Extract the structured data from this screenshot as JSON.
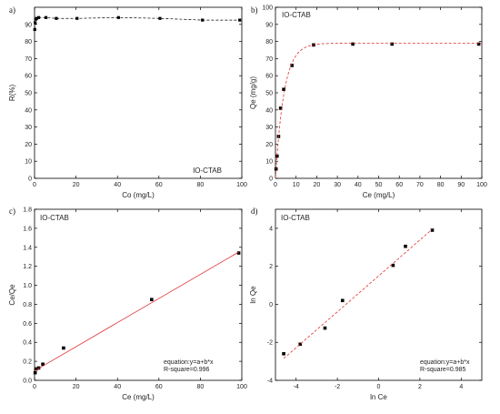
{
  "chart_data": [
    {
      "panel": "a)",
      "type": "line",
      "inset_label": "IO-CTAB",
      "xlabel": "Co (mg/L)",
      "ylabel": "R(%)",
      "xlim": [
        0,
        100
      ],
      "ylim": [
        0,
        100
      ],
      "xticks": [
        0,
        20,
        40,
        60,
        80,
        100
      ],
      "yticks": [
        0,
        10,
        20,
        30,
        40,
        50,
        60,
        70,
        80,
        90
      ],
      "series": [
        {
          "style": "dashed-line-square-markers",
          "color": "#000000",
          "x": [
            0.1,
            0.3,
            0.6,
            1.0,
            2.0,
            5.5,
            10.5,
            20.5,
            40.5,
            60.5,
            81,
            99
          ],
          "y": [
            87,
            91,
            93,
            93.5,
            94,
            94,
            93.5,
            93.5,
            94,
            93.5,
            92.5,
            92.5
          ]
        }
      ]
    },
    {
      "panel": "b)",
      "type": "scatter",
      "inset_label": "IO-CTAB",
      "xlabel": "Ce (mg/L)",
      "ylabel": "Qe (mg/g)",
      "xlim": [
        0,
        100
      ],
      "ylim": [
        0,
        100
      ],
      "xticks": [
        0,
        10,
        20,
        30,
        40,
        50,
        60,
        70,
        80,
        90,
        100
      ],
      "yticks": [
        0,
        10,
        20,
        30,
        40,
        50,
        60,
        70,
        80,
        90,
        100
      ],
      "series": [
        {
          "style": "square-markers",
          "color": "#000000",
          "x": [
            0.3,
            0.8,
            1.5,
            2.5,
            4.0,
            8.0,
            18.5,
            37.5,
            56.5,
            98.5
          ],
          "y": [
            5.5,
            13,
            24.5,
            41,
            52,
            66,
            78,
            78.5,
            78.5,
            78.5
          ]
        },
        {
          "style": "dashed-fit",
          "color": "#e03030",
          "fit": "langmuir-like",
          "qmax": 79,
          "k": 0.24
        }
      ]
    },
    {
      "panel": "c)",
      "type": "scatter",
      "inset_label": "IO-CTAB",
      "xlabel": "Ce (mg/L)",
      "ylabel": "Ce/Qe",
      "xlim": [
        0,
        100
      ],
      "ylim": [
        0,
        1.8
      ],
      "xticks": [
        0,
        20,
        40,
        60,
        80,
        100
      ],
      "yticks": [
        0,
        0.2,
        0.4,
        0.6,
        0.8,
        1.0,
        1.2,
        1.4,
        1.6,
        1.8
      ],
      "ytick_labels": [
        "0.0",
        "0.2",
        "0.4",
        "0.6",
        "0.8",
        "1.0",
        "1.2",
        "1.4",
        "1.6",
        "1.8"
      ],
      "equation": "equation:y=a+b*x",
      "r_square": "R-square=0.996",
      "series": [
        {
          "style": "square-markers",
          "color": "#000000",
          "x": [
            0.3,
            0.8,
            2.0,
            4.0,
            14.0,
            56.5,
            98.5
          ],
          "y": [
            0.08,
            0.12,
            0.13,
            0.17,
            0.34,
            0.85,
            1.34
          ]
        },
        {
          "style": "solid-fit",
          "color": "#e03030",
          "x": [
            0,
            98.5
          ],
          "y": [
            0.1,
            1.35
          ]
        }
      ]
    },
    {
      "panel": "d)",
      "type": "scatter",
      "inset_label": "IO-CTAB",
      "xlabel": "ln Ce",
      "ylabel": "ln Qe",
      "xlim": [
        -5,
        5
      ],
      "ylim": [
        -4,
        5
      ],
      "xticks": [
        -4,
        -2,
        0,
        2,
        4
      ],
      "yticks": [
        -4,
        -2,
        0,
        2,
        4
      ],
      "equation": "equation:y=a+b*x",
      "r_square": "R-square=0.985",
      "series": [
        {
          "style": "square-markers",
          "color": "#000000",
          "x": [
            -4.6,
            -3.8,
            -2.6,
            -1.75,
            0.7,
            1.3,
            2.6
          ],
          "y": [
            -2.6,
            -2.1,
            -1.25,
            0.2,
            2.05,
            3.05,
            3.9
          ]
        },
        {
          "style": "dashed-fit",
          "color": "#e03030",
          "x": [
            -4.6,
            2.6
          ],
          "y": [
            -2.85,
            3.95
          ]
        }
      ]
    }
  ]
}
